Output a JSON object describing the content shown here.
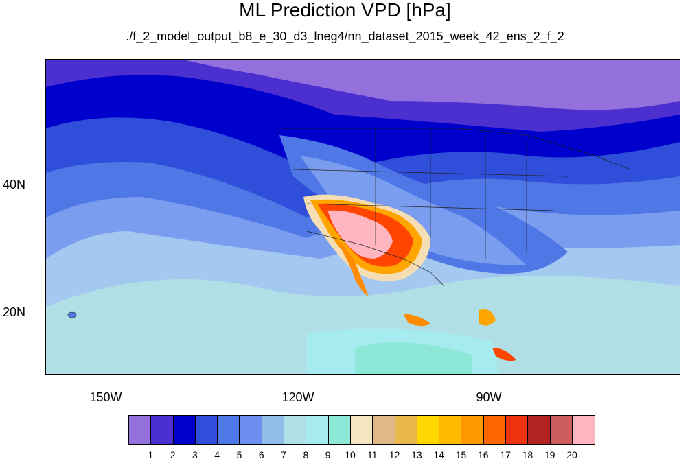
{
  "title": "ML Prediction VPD [hPa]",
  "subtitle": "./f_2_model_output_b8_e_30_d3_lneg4/nn_dataset_2015_week_42_ens_2_f_2",
  "map": {
    "lat_labels": [
      "40N",
      "20N"
    ],
    "lon_labels": [
      "150W",
      "120W",
      "90W"
    ],
    "background_color": "#87ceeb",
    "ocean_bands": [
      "#9370db",
      "#4b2fcf",
      "#0000cd",
      "#2f4fdb",
      "#4f78e6",
      "#7b9df0",
      "#a4c8f0",
      "#b0e0e6"
    ],
    "hot_colors": [
      "#f5deb3",
      "#deb887",
      "#e9b84a",
      "#ffd700",
      "#ffa500",
      "#ff8c00",
      "#ff4500",
      "#b22222",
      "#cd5c5c",
      "#ffb6c1"
    ]
  },
  "colorbar": {
    "colors": [
      "#9370db",
      "#4b2fcf",
      "#0000cd",
      "#2f4fdb",
      "#4f78e6",
      "#6f8ff0",
      "#8fbfe8",
      "#b0e0e6",
      "#a6ebef",
      "#8ee8d8",
      "#f5e6c0",
      "#deb887",
      "#e9b84a",
      "#ffd700",
      "#ffbb00",
      "#ff9900",
      "#ff6600",
      "#ee3311",
      "#b22222",
      "#cd5c5c",
      "#ffb6c1"
    ],
    "ticks": [
      "1",
      "2",
      "3",
      "4",
      "5",
      "6",
      "7",
      "8",
      "9",
      "10",
      "11",
      "12",
      "13",
      "14",
      "15",
      "16",
      "17",
      "18",
      "19",
      "20"
    ]
  }
}
